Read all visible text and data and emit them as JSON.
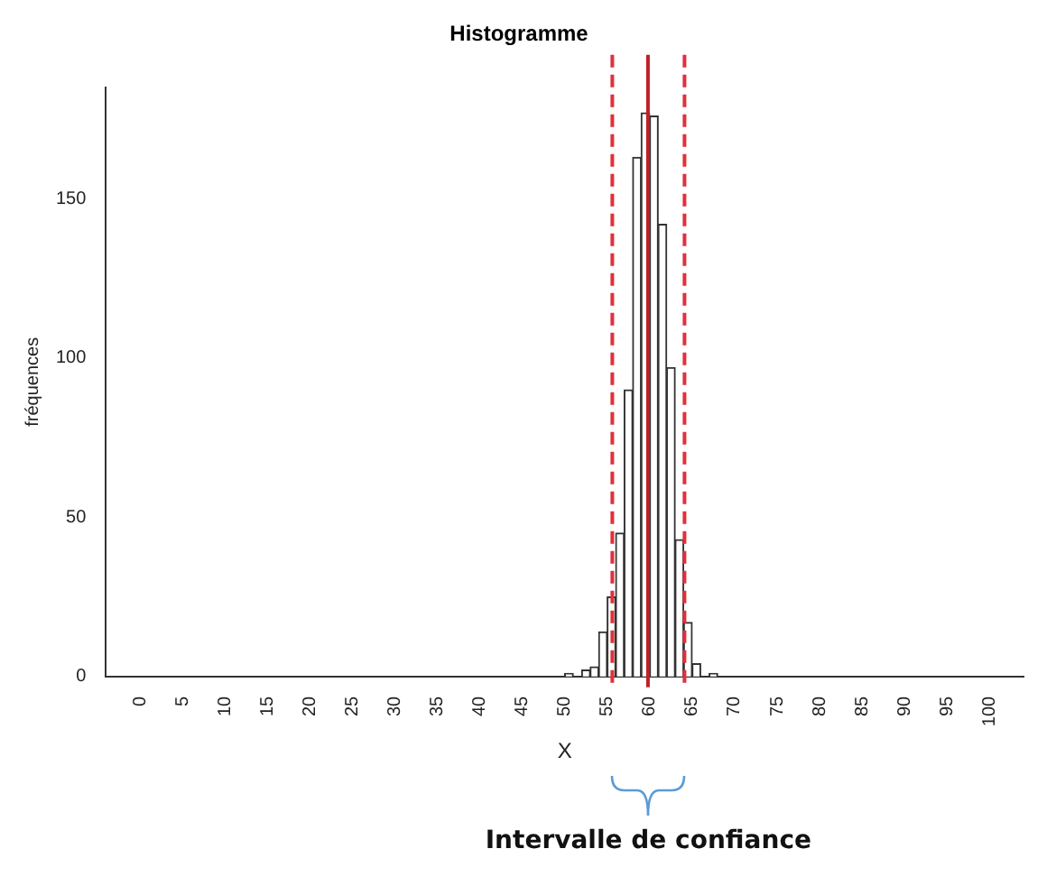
{
  "chart_data": {
    "type": "histogram",
    "title": "Histogramme",
    "xlabel": "X",
    "ylabel": "fréquences",
    "bins": [
      0,
      1,
      2,
      3,
      4,
      5,
      6,
      7,
      8,
      9,
      10,
      11,
      12,
      13,
      14,
      15,
      16,
      17,
      18,
      19,
      20,
      21,
      22,
      23,
      24,
      25,
      26,
      27,
      28,
      29,
      30,
      31,
      32,
      33,
      34,
      35,
      36,
      37,
      38,
      39,
      40,
      41,
      42,
      43,
      44,
      45,
      46,
      47,
      48,
      49,
      50,
      51,
      52,
      53,
      54,
      55,
      56,
      57,
      58,
      59,
      60,
      61,
      62,
      63,
      64,
      65,
      66,
      67,
      68,
      69,
      70,
      71,
      72,
      73,
      74,
      75,
      76,
      77,
      78,
      79,
      80,
      81,
      82,
      83,
      84,
      85,
      86,
      87,
      88,
      89,
      90,
      91,
      92,
      93,
      94,
      95,
      96,
      97,
      98,
      99,
      100
    ],
    "values": [
      0,
      0,
      0,
      0,
      0,
      0,
      0,
      0,
      0,
      0,
      0,
      0,
      0,
      0,
      0,
      0,
      0,
      0,
      0,
      0,
      0,
      0,
      0,
      0,
      0,
      0,
      0,
      0,
      0,
      0,
      0,
      0,
      0,
      0,
      0,
      0,
      0,
      0,
      0,
      0,
      0,
      0,
      0,
      0,
      0,
      0,
      0,
      0,
      0,
      0,
      1,
      0,
      2,
      3,
      14,
      25,
      45,
      90,
      163,
      177,
      176,
      142,
      97,
      43,
      17,
      4,
      0,
      1,
      0,
      0,
      0,
      0,
      0,
      0,
      0,
      0,
      0,
      0,
      0,
      0,
      0,
      0,
      0,
      0,
      0,
      0,
      0,
      0,
      0,
      0,
      0,
      0,
      0,
      0,
      0,
      0,
      0,
      0,
      0,
      0
    ],
    "color": "#ffffff",
    "xlim": [
      -4,
      104
    ],
    "xticks": [
      0,
      5,
      10,
      15,
      20,
      25,
      30,
      35,
      40,
      45,
      50,
      55,
      60,
      65,
      70,
      75,
      80,
      85,
      90,
      95,
      100
    ],
    "ylim": [
      0,
      185
    ],
    "yticks": [
      0,
      50,
      100,
      150
    ],
    "ref_lines": [
      {
        "axis": "x",
        "value": 55.6,
        "color": "#e0303a",
        "line_style": "dashed"
      },
      {
        "axis": "x",
        "value": 59.8,
        "color": "#c0202a",
        "line_style": "solid"
      },
      {
        "axis": "x",
        "value": 64.1,
        "color": "#e0303a",
        "line_style": "dashed"
      }
    ],
    "annotations": [
      "Intervalle de confiance"
    ],
    "grid": false,
    "legend": false
  }
}
